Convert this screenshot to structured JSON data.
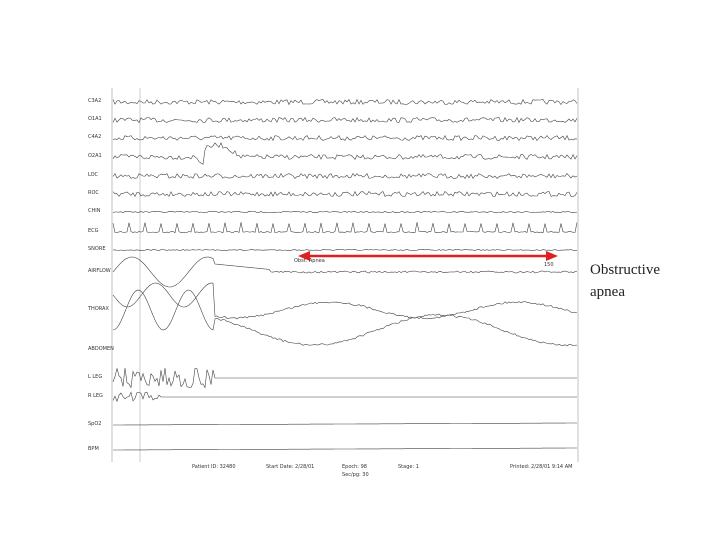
{
  "channels": [
    "C3A2",
    "O1A1",
    "C4A2",
    "O2A1",
    "LOC",
    "ROC",
    "CHIN",
    "ECG",
    "SNORE",
    "AIRFLOW",
    "THORAX",
    "ABDOMEN",
    "L LEG",
    "R LEG",
    "SpO2",
    "BPM"
  ],
  "annotation": {
    "event": "Obst. Apnea",
    "duration": "150"
  },
  "caption": {
    "line1": "Obstructive",
    "line2": "apnea"
  },
  "footer": {
    "patient": "Patient ID: 32480",
    "date": "Start Date: 2/28/01",
    "epoch": "Epoch: 98",
    "secpg": "Sec/pg: 30",
    "stage": "Stage: 1",
    "printed": "Printed: 2/28/01 9:14 AM"
  }
}
